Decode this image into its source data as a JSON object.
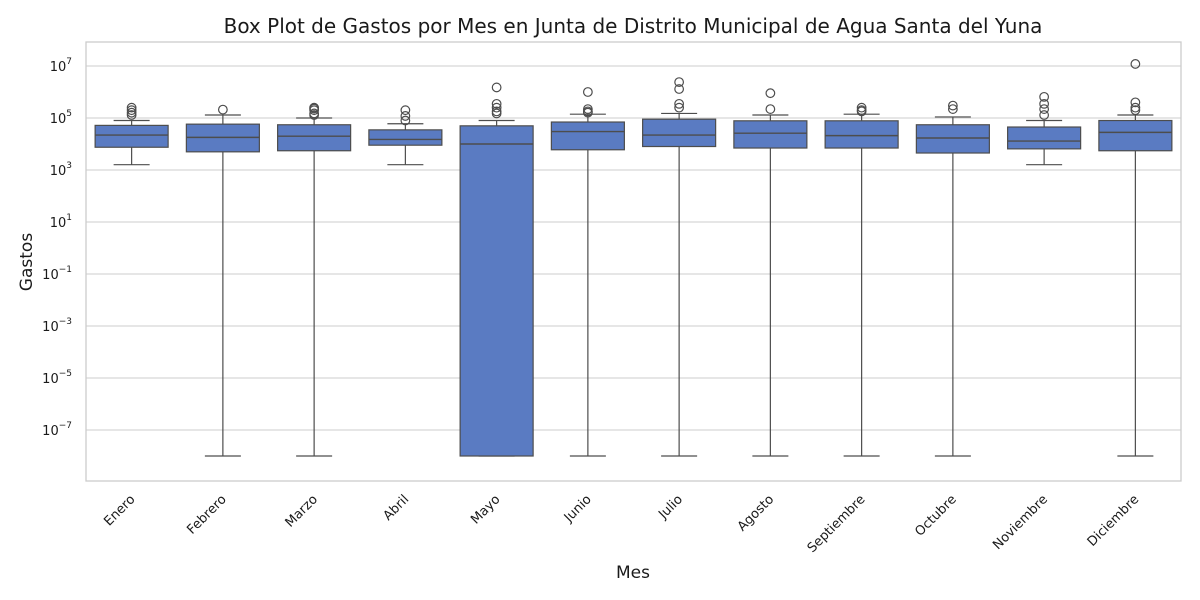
{
  "chart_data": {
    "type": "box",
    "title": "Box Plot de Gastos por Mes en Junta de Distrito Municipal de Agua Santa del Yuna",
    "xlabel": "Mes",
    "ylabel": "Gastos",
    "yscale": "log",
    "ylim": [
      1e-09,
      50000000.0
    ],
    "yticks": [
      {
        "base": "10",
        "exp": "7",
        "value": 10000000.0
      },
      {
        "base": "10",
        "exp": "5",
        "value": 100000.0
      },
      {
        "base": "10",
        "exp": "3",
        "value": 1000.0
      },
      {
        "base": "10",
        "exp": "1",
        "value": 10.0
      },
      {
        "base": "10",
        "exp": "−1",
        "value": 0.1
      },
      {
        "base": "10",
        "exp": "−3",
        "value": 0.001
      },
      {
        "base": "10",
        "exp": "−5",
        "value": 1e-05
      },
      {
        "base": "10",
        "exp": "−7",
        "value": 1e-07
      }
    ],
    "grid": true,
    "box_color": "#5a7bc2",
    "line_color": "#4d4d4d",
    "categories": [
      "Enero",
      "Febrero",
      "Marzo",
      "Abril",
      "Mayo",
      "Junio",
      "Julio",
      "Agosto",
      "Septiembre",
      "Octubre",
      "Noviembre",
      "Diciembre"
    ],
    "boxes": [
      {
        "category": "Enero",
        "whislo": 1600,
        "q1": 7500,
        "med": 22000,
        "q3": 52000,
        "whishi": 80000,
        "fliers": [
          250000,
          200000,
          160000,
          130000
        ]
      },
      {
        "category": "Febrero",
        "whislo": 1e-08,
        "q1": 5000,
        "med": 18000,
        "q3": 58000,
        "whishi": 130000,
        "fliers": [
          210000
        ]
      },
      {
        "category": "Marzo",
        "whislo": 1e-08,
        "q1": 5500,
        "med": 20000,
        "q3": 55000,
        "whishi": 100000,
        "fliers": [
          250000,
          230000,
          200000,
          150000,
          130000
        ]
      },
      {
        "category": "Abril",
        "whislo": 1600,
        "q1": 9000,
        "med": 15000,
        "q3": 35000,
        "whishi": 60000,
        "fliers": [
          200000,
          120000,
          80000
        ]
      },
      {
        "category": "Mayo",
        "whislo": 1e-08,
        "q1": 1e-08,
        "med": 10000,
        "q3": 50000,
        "whishi": 80000,
        "fliers": [
          1500000,
          350000,
          250000,
          180000,
          150000
        ]
      },
      {
        "category": "Junio",
        "whislo": 1e-08,
        "q1": 6000,
        "med": 30000,
        "q3": 70000,
        "whishi": 140000,
        "fliers": [
          1000000,
          220000,
          180000,
          160000
        ]
      },
      {
        "category": "Julio",
        "whislo": 1e-08,
        "q1": 8000,
        "med": 22000,
        "q3": 90000,
        "whishi": 150000,
        "fliers": [
          2400000,
          1300000,
          350000,
          250000
        ]
      },
      {
        "category": "Agosto",
        "whislo": 1e-08,
        "q1": 7000,
        "med": 26000,
        "q3": 78000,
        "whishi": 130000,
        "fliers": [
          900000,
          220000
        ]
      },
      {
        "category": "Septiembre",
        "whislo": 1e-08,
        "q1": 7000,
        "med": 21000,
        "q3": 78000,
        "whishi": 140000,
        "fliers": [
          250000,
          200000,
          180000
        ]
      },
      {
        "category": "Octubre",
        "whislo": 1e-08,
        "q1": 4500,
        "med": 17000,
        "q3": 55000,
        "whishi": 110000,
        "fliers": [
          300000,
          220000
        ]
      },
      {
        "category": "Noviembre",
        "whislo": 1600,
        "q1": 6500,
        "med": 13000,
        "q3": 45000,
        "whishi": 80000,
        "fliers": [
          650000,
          350000,
          220000,
          130000
        ]
      },
      {
        "category": "Diciembre",
        "whislo": 1e-08,
        "q1": 5500,
        "med": 28000,
        "q3": 80000,
        "whishi": 130000,
        "fliers": [
          12000000,
          400000,
          250000,
          200000
        ]
      }
    ]
  }
}
